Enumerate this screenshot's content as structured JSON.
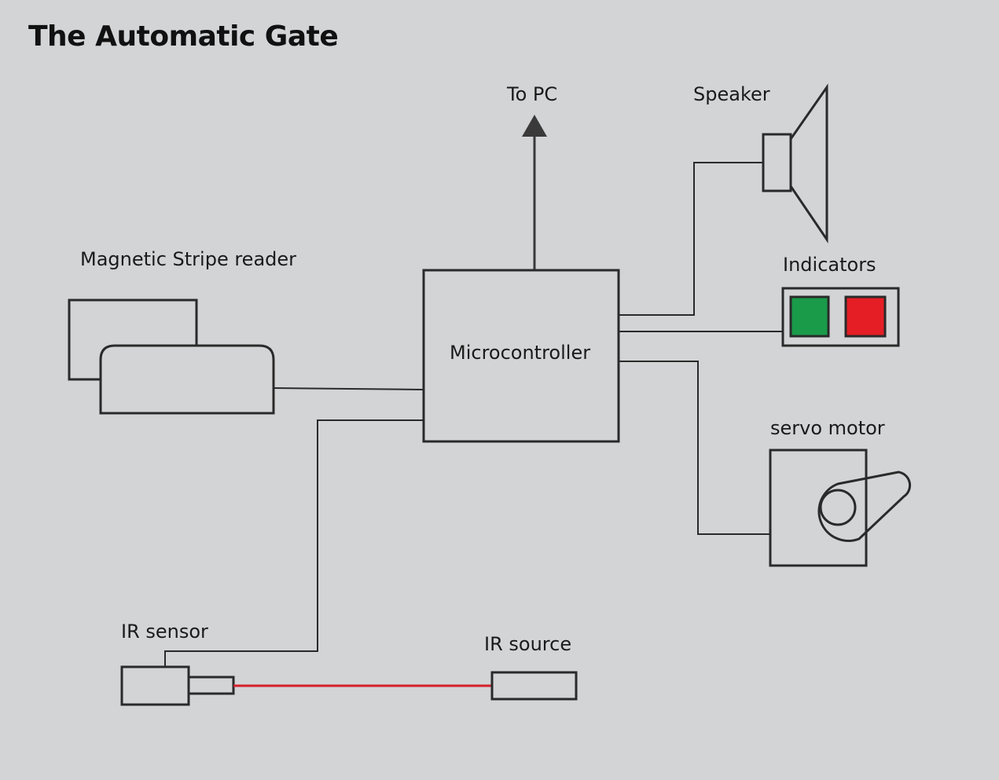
{
  "title": "The Automatic Gate",
  "labels": {
    "to_pc": "To PC",
    "speaker": "Speaker",
    "magnetic_stripe_reader": "Magnetic Stripe reader",
    "indicators": "Indicators",
    "microcontroller": "Microcontroller",
    "servo_motor": "servo motor",
    "ir_sensor": "IR sensor",
    "ir_source": "IR source"
  },
  "colors": {
    "background": "#d3d4d6",
    "stroke": "#2a2a2a",
    "indicator_green": "#1a9b4a",
    "indicator_red": "#e51e25",
    "ir_beam": "#d4212a",
    "arrow": "#3a3a3a"
  }
}
